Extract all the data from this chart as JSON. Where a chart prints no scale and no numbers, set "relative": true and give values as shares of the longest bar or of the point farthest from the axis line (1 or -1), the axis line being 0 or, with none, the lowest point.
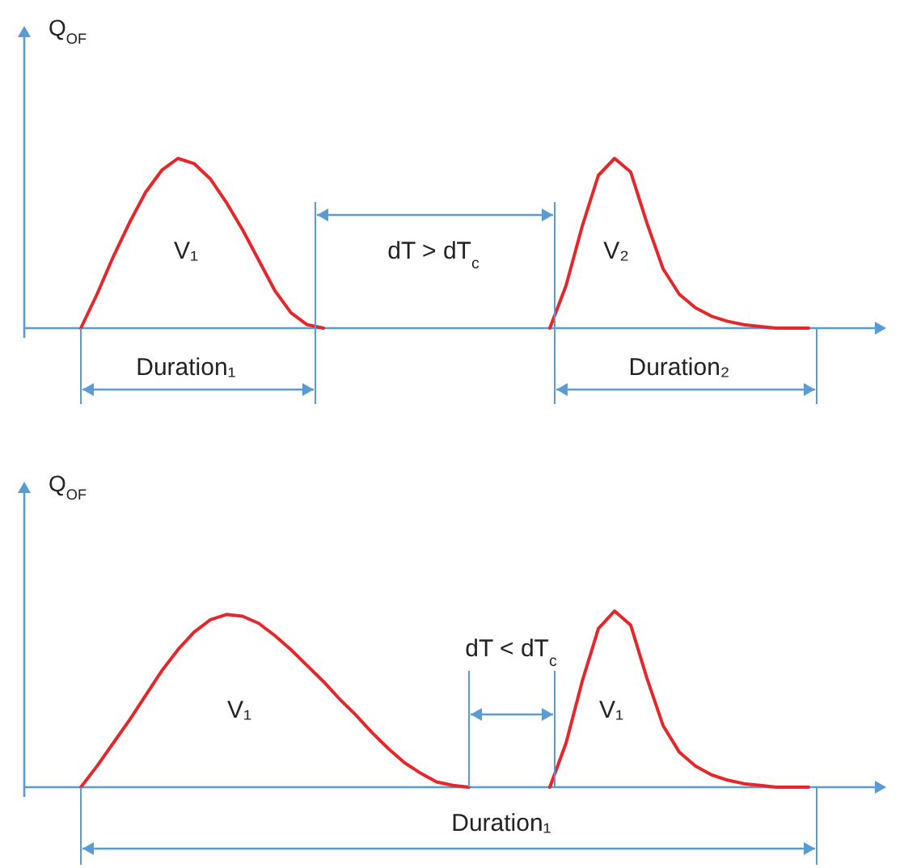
{
  "chart_data": [
    {
      "type": "line",
      "relative": true,
      "ylabel": "Q$_{OF}$",
      "categories": [
        null,
        null,
        null,
        null,
        null,
        null,
        null,
        null,
        null,
        null,
        null,
        null,
        null,
        null,
        null,
        null,
        null,
        null,
        null,
        null,
        null,
        null,
        null,
        null,
        null,
        null,
        null,
        null,
        null,
        null,
        null,
        null,
        null,
        null,
        null,
        null,
        null,
        null,
        null,
        null,
        null,
        null,
        null,
        null,
        null,
        null,
        null,
        null,
        null,
        null,
        null,
        null,
        null
      ],
      "series": [
        {
          "color": "#e5262b",
          "values": [
            null,
            null,
            null,
            0,
            0.2,
            0.42,
            0.62,
            0.8,
            0.93,
            1,
            0.97,
            0.88,
            0.74,
            0.58,
            0.4,
            0.22,
            0.09,
            0.02,
            0,
            null,
            null,
            null,
            null,
            null,
            null,
            null,
            null,
            null,
            null,
            null,
            null,
            null,
            null,
            null,
            null,
            null,
            null,
            null,
            null,
            null,
            null,
            null,
            null,
            null,
            null,
            null,
            null,
            null,
            null,
            null,
            null,
            null,
            null
          ]
        },
        {
          "color": "#e5262b",
          "values": [
            null,
            null,
            null,
            null,
            null,
            null,
            null,
            null,
            null,
            null,
            null,
            null,
            null,
            null,
            null,
            null,
            null,
            null,
            null,
            null,
            null,
            null,
            null,
            null,
            null,
            null,
            null,
            null,
            null,
            null,
            null,
            null,
            0,
            0.25,
            0.6,
            0.9,
            1,
            0.92,
            0.62,
            0.35,
            0.2,
            0.12,
            0.07,
            0.04,
            0.02,
            0.01,
            0,
            0,
            0,
            null,
            null,
            null,
            null
          ]
        }
      ],
      "annotations": [
        "V₁",
        "dT > dT$_{c}$",
        "V₂",
        "Duration₁",
        "Duration₂"
      ]
    },
    {
      "type": "line",
      "relative": true,
      "ylabel": "Q$_{OF}$",
      "categories": [
        null,
        null,
        null,
        null,
        null,
        null,
        null,
        null,
        null,
        null,
        null,
        null,
        null,
        null,
        null,
        null,
        null,
        null,
        null,
        null,
        null,
        null,
        null,
        null,
        null,
        null,
        null,
        null,
        null,
        null,
        null,
        null,
        null,
        null,
        null,
        null,
        null,
        null,
        null,
        null,
        null,
        null,
        null,
        null,
        null,
        null,
        null,
        null,
        null,
        null,
        null,
        null,
        null
      ],
      "series": [
        {
          "color": "#e5262b",
          "values": [
            null,
            null,
            null,
            0,
            0.12,
            0.25,
            0.38,
            0.52,
            0.66,
            0.78,
            0.88,
            0.95,
            0.98,
            0.97,
            0.93,
            0.86,
            0.78,
            0.69,
            0.6,
            0.5,
            0.41,
            0.31,
            0.22,
            0.14,
            0.08,
            0.03,
            0.01,
            0,
            null,
            null,
            null,
            null,
            null,
            null,
            null,
            null,
            null,
            null,
            null,
            null,
            null,
            null,
            null,
            null,
            null,
            null,
            null,
            null,
            null,
            null,
            null,
            null,
            null
          ]
        },
        {
          "color": "#e5262b",
          "values": [
            null,
            null,
            null,
            null,
            null,
            null,
            null,
            null,
            null,
            null,
            null,
            null,
            null,
            null,
            null,
            null,
            null,
            null,
            null,
            null,
            null,
            null,
            null,
            null,
            null,
            null,
            null,
            null,
            null,
            null,
            null,
            null,
            0,
            0.25,
            0.6,
            0.9,
            1,
            0.92,
            0.62,
            0.35,
            0.2,
            0.12,
            0.07,
            0.04,
            0.02,
            0.01,
            0,
            0,
            0,
            null,
            null,
            null,
            null
          ]
        }
      ],
      "annotations": [
        "V₁",
        "dT < dT$_{c}$",
        "V₁",
        "Duration₁"
      ]
    }
  ]
}
